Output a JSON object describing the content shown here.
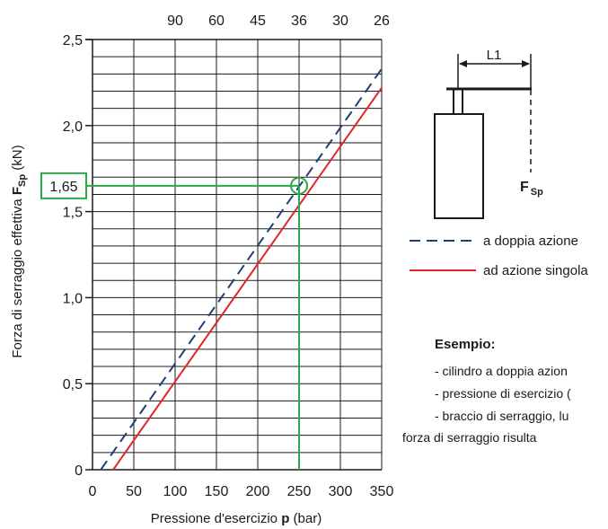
{
  "chart_data": {
    "type": "line",
    "xlabel_parts": [
      "Pressione d'esercizio ",
      "p",
      " (bar)"
    ],
    "ylabel_parts": [
      "Forza di serraggio effettiva ",
      "F",
      "Sp",
      " (kN)"
    ],
    "xlim": [
      0,
      350
    ],
    "ylim": [
      0,
      2.5
    ],
    "x_ticks": [
      0,
      50,
      100,
      150,
      200,
      250,
      300,
      350
    ],
    "x_tick_labels": [
      "0",
      "50",
      "100",
      "150",
      "200",
      "250",
      "300",
      "350"
    ],
    "y_ticks": [
      0,
      0.5,
      1.0,
      1.5,
      2.0,
      2.5
    ],
    "y_tick_labels": [
      "0",
      "0,5",
      "1,0",
      "1,5",
      "2,0",
      "2,5"
    ],
    "top_axis_positions": [
      100,
      150,
      200,
      250,
      300,
      350
    ],
    "top_axis_labels": [
      "90",
      "60",
      "45",
      "36",
      "30",
      "26"
    ],
    "minor_y_step": 0.1,
    "grid": true,
    "series": [
      {
        "name": "a doppia azione",
        "style": "dashed",
        "color": "#1f3f73",
        "x": [
          10,
          350
        ],
        "y": [
          0,
          2.33
        ]
      },
      {
        "name": "ad azione singola",
        "style": "solid",
        "color": "#e0262a",
        "x": [
          25,
          350
        ],
        "y": [
          0,
          2.22
        ]
      }
    ],
    "annotation": {
      "x": 250,
      "y": 1.65,
      "label": "1,65",
      "color": "#2aa84a"
    }
  },
  "diagram": {
    "dimension_label": "L1",
    "force_label_main": "F",
    "force_label_sub": "Sp"
  },
  "example": {
    "title": "Esempio:",
    "lines": [
      "- cilindro a doppia azion",
      "- pressione di esercizio (",
      "- braccio di serraggio, lu",
      "forza di serraggio risulta"
    ]
  }
}
